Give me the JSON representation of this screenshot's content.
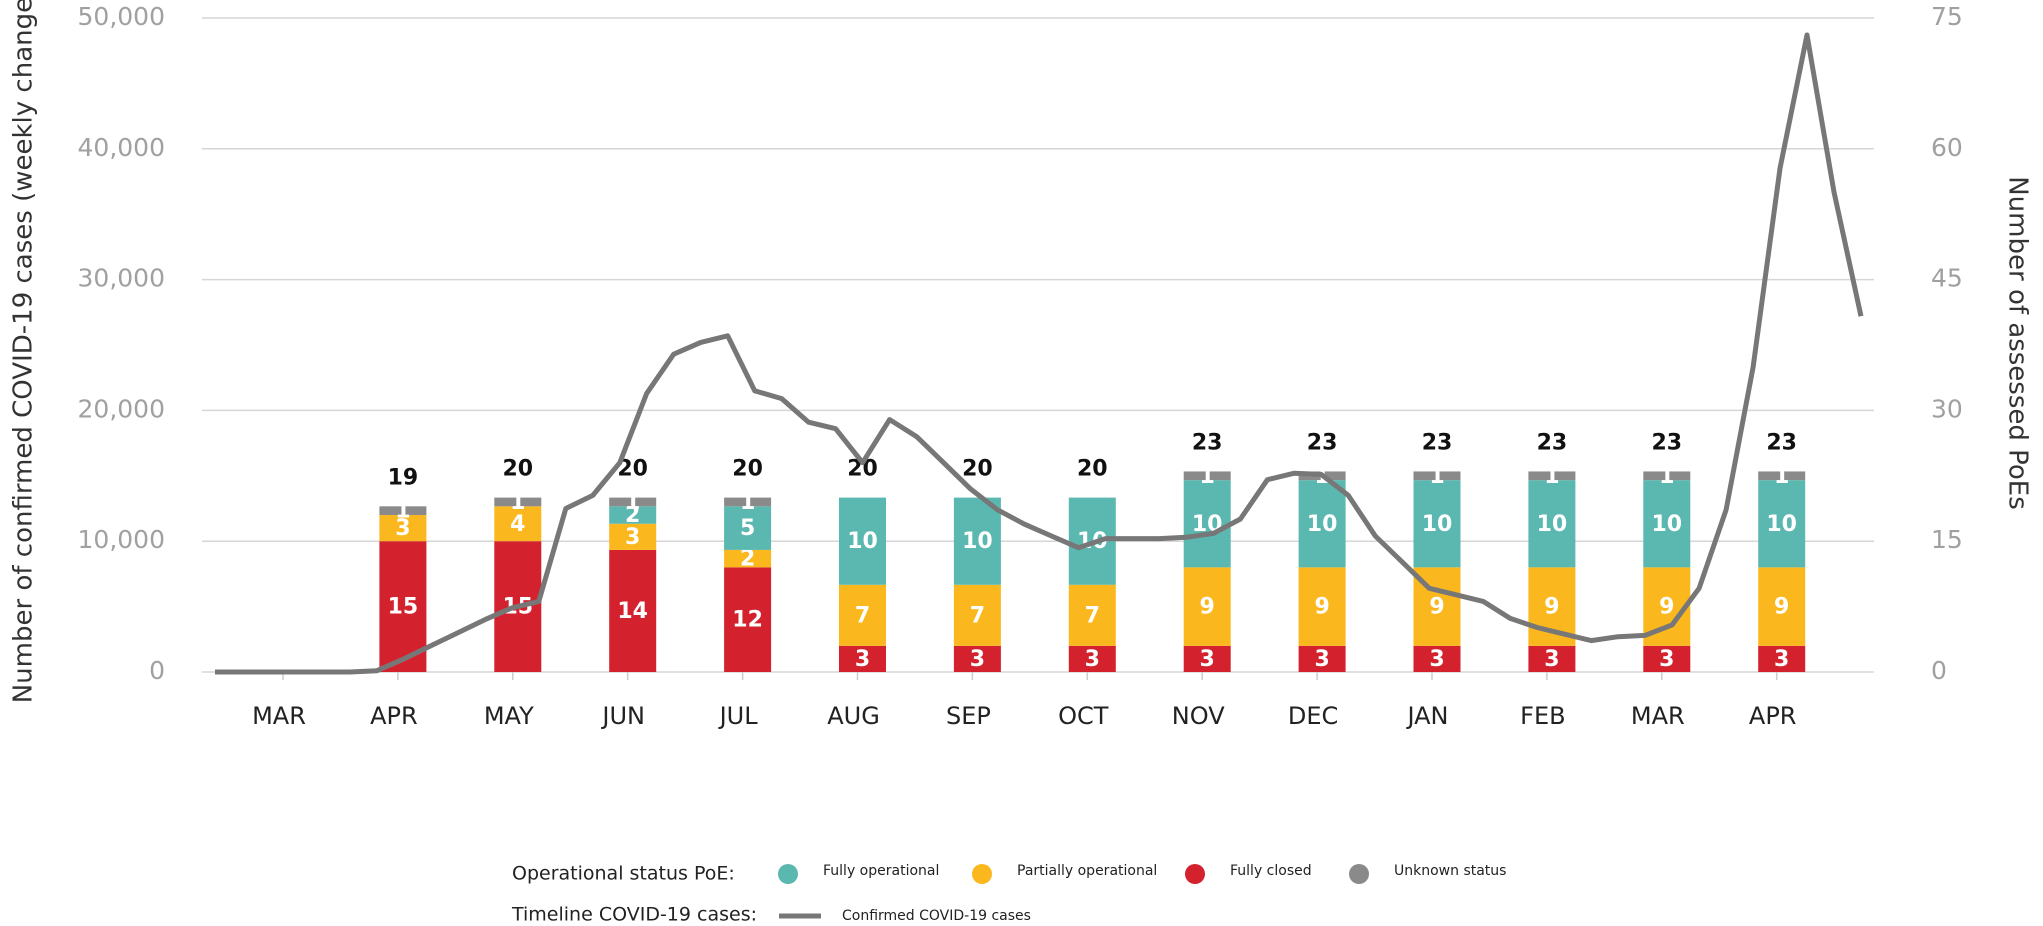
{
  "chart_data": {
    "type": "bar",
    "categories": [
      "MAR",
      "APR",
      "MAY",
      "JUN",
      "JUL",
      "AUG",
      "SEP",
      "OCT",
      "NOV",
      "DEC",
      "JAN",
      "FEB",
      "MAR",
      "APR"
    ],
    "y_label": "Number of confirmed COVID-19 cases (weekly change)",
    "y2_label": "Number of assessed PoEs",
    "ylim": [
      0,
      50000
    ],
    "yticks": [
      0,
      {
        "value": 10000,
        "label": "10,000"
      },
      {
        "value": 20000,
        "label": "20,000"
      },
      {
        "value": 30000,
        "label": "30,000"
      },
      {
        "value": 40000,
        "label": "40,000"
      },
      {
        "value": 50000,
        "label": "50,000"
      }
    ],
    "y2lim": [
      0,
      75
    ],
    "y2ticks": [
      0,
      15,
      30,
      45,
      60,
      75
    ],
    "grid": true,
    "legend_title": "Operational status PoE:",
    "line_legend_title": "Timeline COVID-19 cases:",
    "series": [
      {
        "name": "Fully closed",
        "color": "#d3222e",
        "axis": "y2",
        "values": [
          null,
          15,
          15,
          14,
          12,
          3,
          3,
          3,
          3,
          3,
          3,
          3,
          3,
          3
        ]
      },
      {
        "name": "Partially operational",
        "color": "#fbb81e",
        "axis": "y2",
        "values": [
          null,
          3,
          4,
          3,
          2,
          7,
          7,
          7,
          9,
          9,
          9,
          9,
          9,
          9
        ]
      },
      {
        "name": "Fully operational",
        "color": "#5bb8b0",
        "axis": "y2",
        "values": [
          null,
          0,
          0,
          2,
          5,
          10,
          10,
          10,
          10,
          10,
          10,
          10,
          10,
          10
        ]
      },
      {
        "name": "Unknown status",
        "color": "#8a8a8a",
        "axis": "y2",
        "values": [
          null,
          1,
          1,
          1,
          1,
          0,
          0,
          0,
          1,
          1,
          1,
          1,
          1,
          1
        ]
      }
    ],
    "totals": [
      null,
      19,
      20,
      20,
      20,
      20,
      20,
      20,
      23,
      23,
      23,
      23,
      23,
      23
    ],
    "line": {
      "type": "line",
      "name": "Confirmed COVID-19 cases",
      "color": "#777777",
      "axis": "y",
      "values": [
        0,
        0,
        0,
        0,
        0,
        0,
        100,
        1000,
        2000,
        3000,
        4000,
        4900,
        5400,
        12500,
        13500,
        16000,
        21300,
        24300,
        25200,
        25700,
        21500,
        20900,
        19100,
        18600,
        16000,
        19300,
        18000,
        16000,
        14000,
        12400,
        11300,
        10400,
        9500,
        10200,
        10200,
        10200,
        10300,
        10600,
        11700,
        14700,
        15200,
        15100,
        13500,
        10400,
        8400,
        6400,
        5900,
        5400,
        4100,
        3400,
        2900,
        2400,
        2700,
        2800,
        3600,
        6400,
        12400,
        23300,
        38500,
        48700,
        36700,
        27200
      ]
    }
  }
}
